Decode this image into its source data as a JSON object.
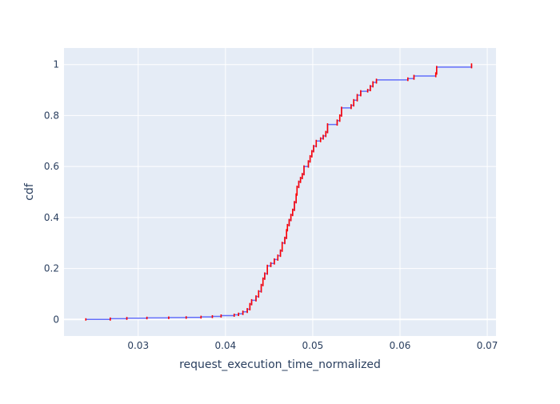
{
  "chart_data": {
    "type": "line",
    "title": "",
    "xlabel": "request_execution_time_normalized",
    "ylabel": "cdf",
    "xlim": [
      0.0215,
      0.071
    ],
    "ylim": [
      -0.065,
      1.065
    ],
    "x_ticks": [
      0.03,
      0.04,
      0.05,
      0.06,
      0.07
    ],
    "x_tick_labels": [
      "0.03",
      "0.04",
      "0.05",
      "0.06",
      "0.07"
    ],
    "y_ticks": [
      0,
      0.2,
      0.4,
      0.6,
      0.8,
      1
    ],
    "y_tick_labels": [
      "0",
      "0.2",
      "0.4",
      "0.6",
      "0.8",
      "1"
    ],
    "grid": true,
    "legend": "none",
    "colors": {
      "plot_background": "#e5ecf6",
      "grid": "#ffffff",
      "step_line": "#636efa",
      "markers": "#ff0000"
    },
    "series": [
      {
        "points": [
          [
            0.024,
            0.0
          ],
          [
            0.0268,
            0.003
          ],
          [
            0.0287,
            0.005
          ],
          [
            0.031,
            0.006
          ],
          [
            0.0335,
            0.007
          ],
          [
            0.0355,
            0.008
          ],
          [
            0.0372,
            0.01
          ],
          [
            0.0385,
            0.012
          ],
          [
            0.0395,
            0.015
          ],
          [
            0.041,
            0.018
          ],
          [
            0.0415,
            0.022
          ],
          [
            0.042,
            0.03
          ],
          [
            0.0425,
            0.04
          ],
          [
            0.0428,
            0.06
          ],
          [
            0.043,
            0.075
          ],
          [
            0.0435,
            0.09
          ],
          [
            0.0438,
            0.11
          ],
          [
            0.0441,
            0.135
          ],
          [
            0.0443,
            0.16
          ],
          [
            0.0445,
            0.18
          ],
          [
            0.0448,
            0.21
          ],
          [
            0.0452,
            0.22
          ],
          [
            0.0456,
            0.235
          ],
          [
            0.046,
            0.25
          ],
          [
            0.0463,
            0.27
          ],
          [
            0.0465,
            0.3
          ],
          [
            0.0468,
            0.32
          ],
          [
            0.047,
            0.35
          ],
          [
            0.0471,
            0.37
          ],
          [
            0.0473,
            0.39
          ],
          [
            0.0475,
            0.41
          ],
          [
            0.0477,
            0.43
          ],
          [
            0.0479,
            0.46
          ],
          [
            0.0481,
            0.49
          ],
          [
            0.0482,
            0.52
          ],
          [
            0.0484,
            0.54
          ],
          [
            0.0486,
            0.555
          ],
          [
            0.0488,
            0.57
          ],
          [
            0.049,
            0.6
          ],
          [
            0.0495,
            0.62
          ],
          [
            0.0497,
            0.64
          ],
          [
            0.0499,
            0.66
          ],
          [
            0.0501,
            0.68
          ],
          [
            0.0504,
            0.7
          ],
          [
            0.0509,
            0.71
          ],
          [
            0.0512,
            0.72
          ],
          [
            0.0515,
            0.735
          ],
          [
            0.0517,
            0.765
          ],
          [
            0.0528,
            0.78
          ],
          [
            0.0531,
            0.8
          ],
          [
            0.0533,
            0.83
          ],
          [
            0.0544,
            0.84
          ],
          [
            0.0547,
            0.86
          ],
          [
            0.0551,
            0.88
          ],
          [
            0.0555,
            0.895
          ],
          [
            0.0563,
            0.9
          ],
          [
            0.0566,
            0.915
          ],
          [
            0.0569,
            0.93
          ],
          [
            0.0573,
            0.94
          ],
          [
            0.0609,
            0.945
          ],
          [
            0.0616,
            0.955
          ],
          [
            0.0641,
            0.965
          ],
          [
            0.0642,
            0.99
          ],
          [
            0.0682,
            1.0
          ]
        ]
      }
    ]
  }
}
